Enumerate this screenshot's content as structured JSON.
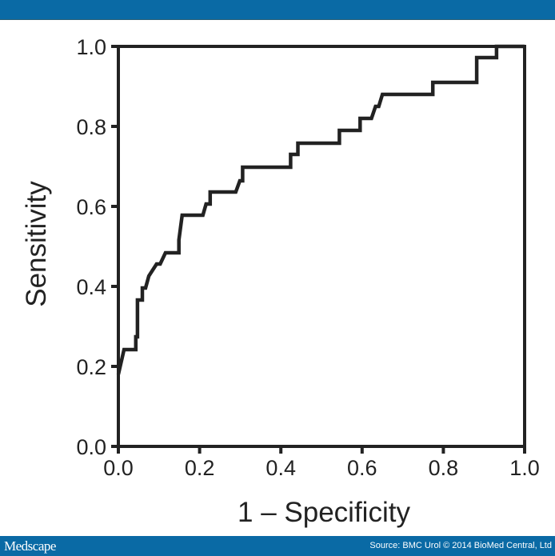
{
  "header": {
    "bar_color": "#0a6aa5"
  },
  "footer": {
    "logo": "Medscape",
    "source": "Source: BMC Urol © 2014 BioMed Central, Ltd"
  },
  "chart_data": {
    "type": "line",
    "title": "",
    "xlabel": "1 – Specificity",
    "ylabel": "Sensitivity",
    "xlim": [
      0,
      1
    ],
    "ylim": [
      0,
      1
    ],
    "x_ticks": [
      "0.0",
      "0.2",
      "0.4",
      "0.6",
      "0.8",
      "1.0"
    ],
    "y_ticks": [
      "0.0",
      "0.2",
      "0.4",
      "0.6",
      "0.8",
      "1.0"
    ],
    "grid": false,
    "legend": null,
    "series": [
      {
        "name": "ROC curve",
        "color": "#222222",
        "x": [
          0.0,
          0.014,
          0.014,
          0.043,
          0.043,
          0.047,
          0.047,
          0.059,
          0.059,
          0.067,
          0.067,
          0.075,
          0.094,
          0.103,
          0.116,
          0.149,
          0.149,
          0.157,
          0.208,
          0.216,
          0.226,
          0.226,
          0.289,
          0.299,
          0.306,
          0.306,
          0.424,
          0.424,
          0.442,
          0.442,
          0.544,
          0.544,
          0.595,
          0.595,
          0.623,
          0.633,
          0.641,
          0.65,
          0.774,
          0.774,
          0.882,
          0.882,
          0.931,
          0.931,
          1.0
        ],
        "y": [
          0.18,
          0.242,
          0.242,
          0.242,
          0.274,
          0.274,
          0.366,
          0.366,
          0.396,
          0.396,
          0.396,
          0.426,
          0.456,
          0.456,
          0.484,
          0.484,
          0.516,
          0.578,
          0.578,
          0.606,
          0.606,
          0.636,
          0.636,
          0.664,
          0.664,
          0.698,
          0.698,
          0.73,
          0.73,
          0.758,
          0.758,
          0.79,
          0.79,
          0.82,
          0.82,
          0.85,
          0.85,
          0.88,
          0.88,
          0.91,
          0.91,
          0.972,
          0.972,
          1.0,
          1.0
        ]
      }
    ]
  }
}
